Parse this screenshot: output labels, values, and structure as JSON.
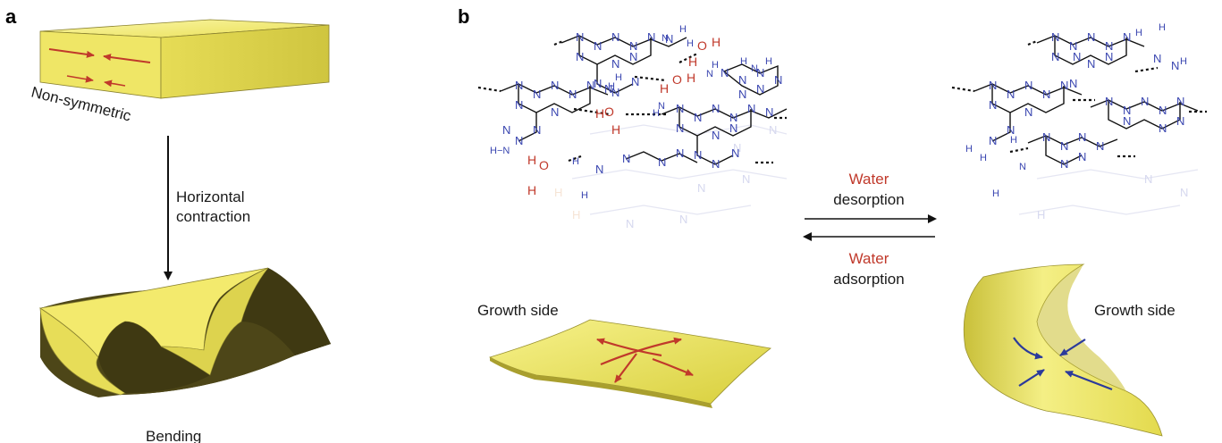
{
  "panel_a": {
    "label": "a",
    "top_caption": "Non-symmetric",
    "step_label_line1": "Horizontal",
    "step_label_line2": "contraction",
    "bottom_caption": "Bending"
  },
  "panel_b": {
    "label": "b",
    "forward_title": "Water",
    "forward_sub": "desorption",
    "reverse_title": "Water",
    "reverse_sub": "adsorption",
    "left_sheet_label": "Growth side",
    "right_sheet_label": "Growth side"
  },
  "colors": {
    "block_yellow": "#f2ea6e",
    "block_shadow": "#bdb43a",
    "dark_face": "#4a4418",
    "arrow_red": "#c0392b",
    "arrow_blue": "#2b3a9b",
    "nitrogen_blue": "#3a46b0",
    "water_red": "#c0392b"
  }
}
